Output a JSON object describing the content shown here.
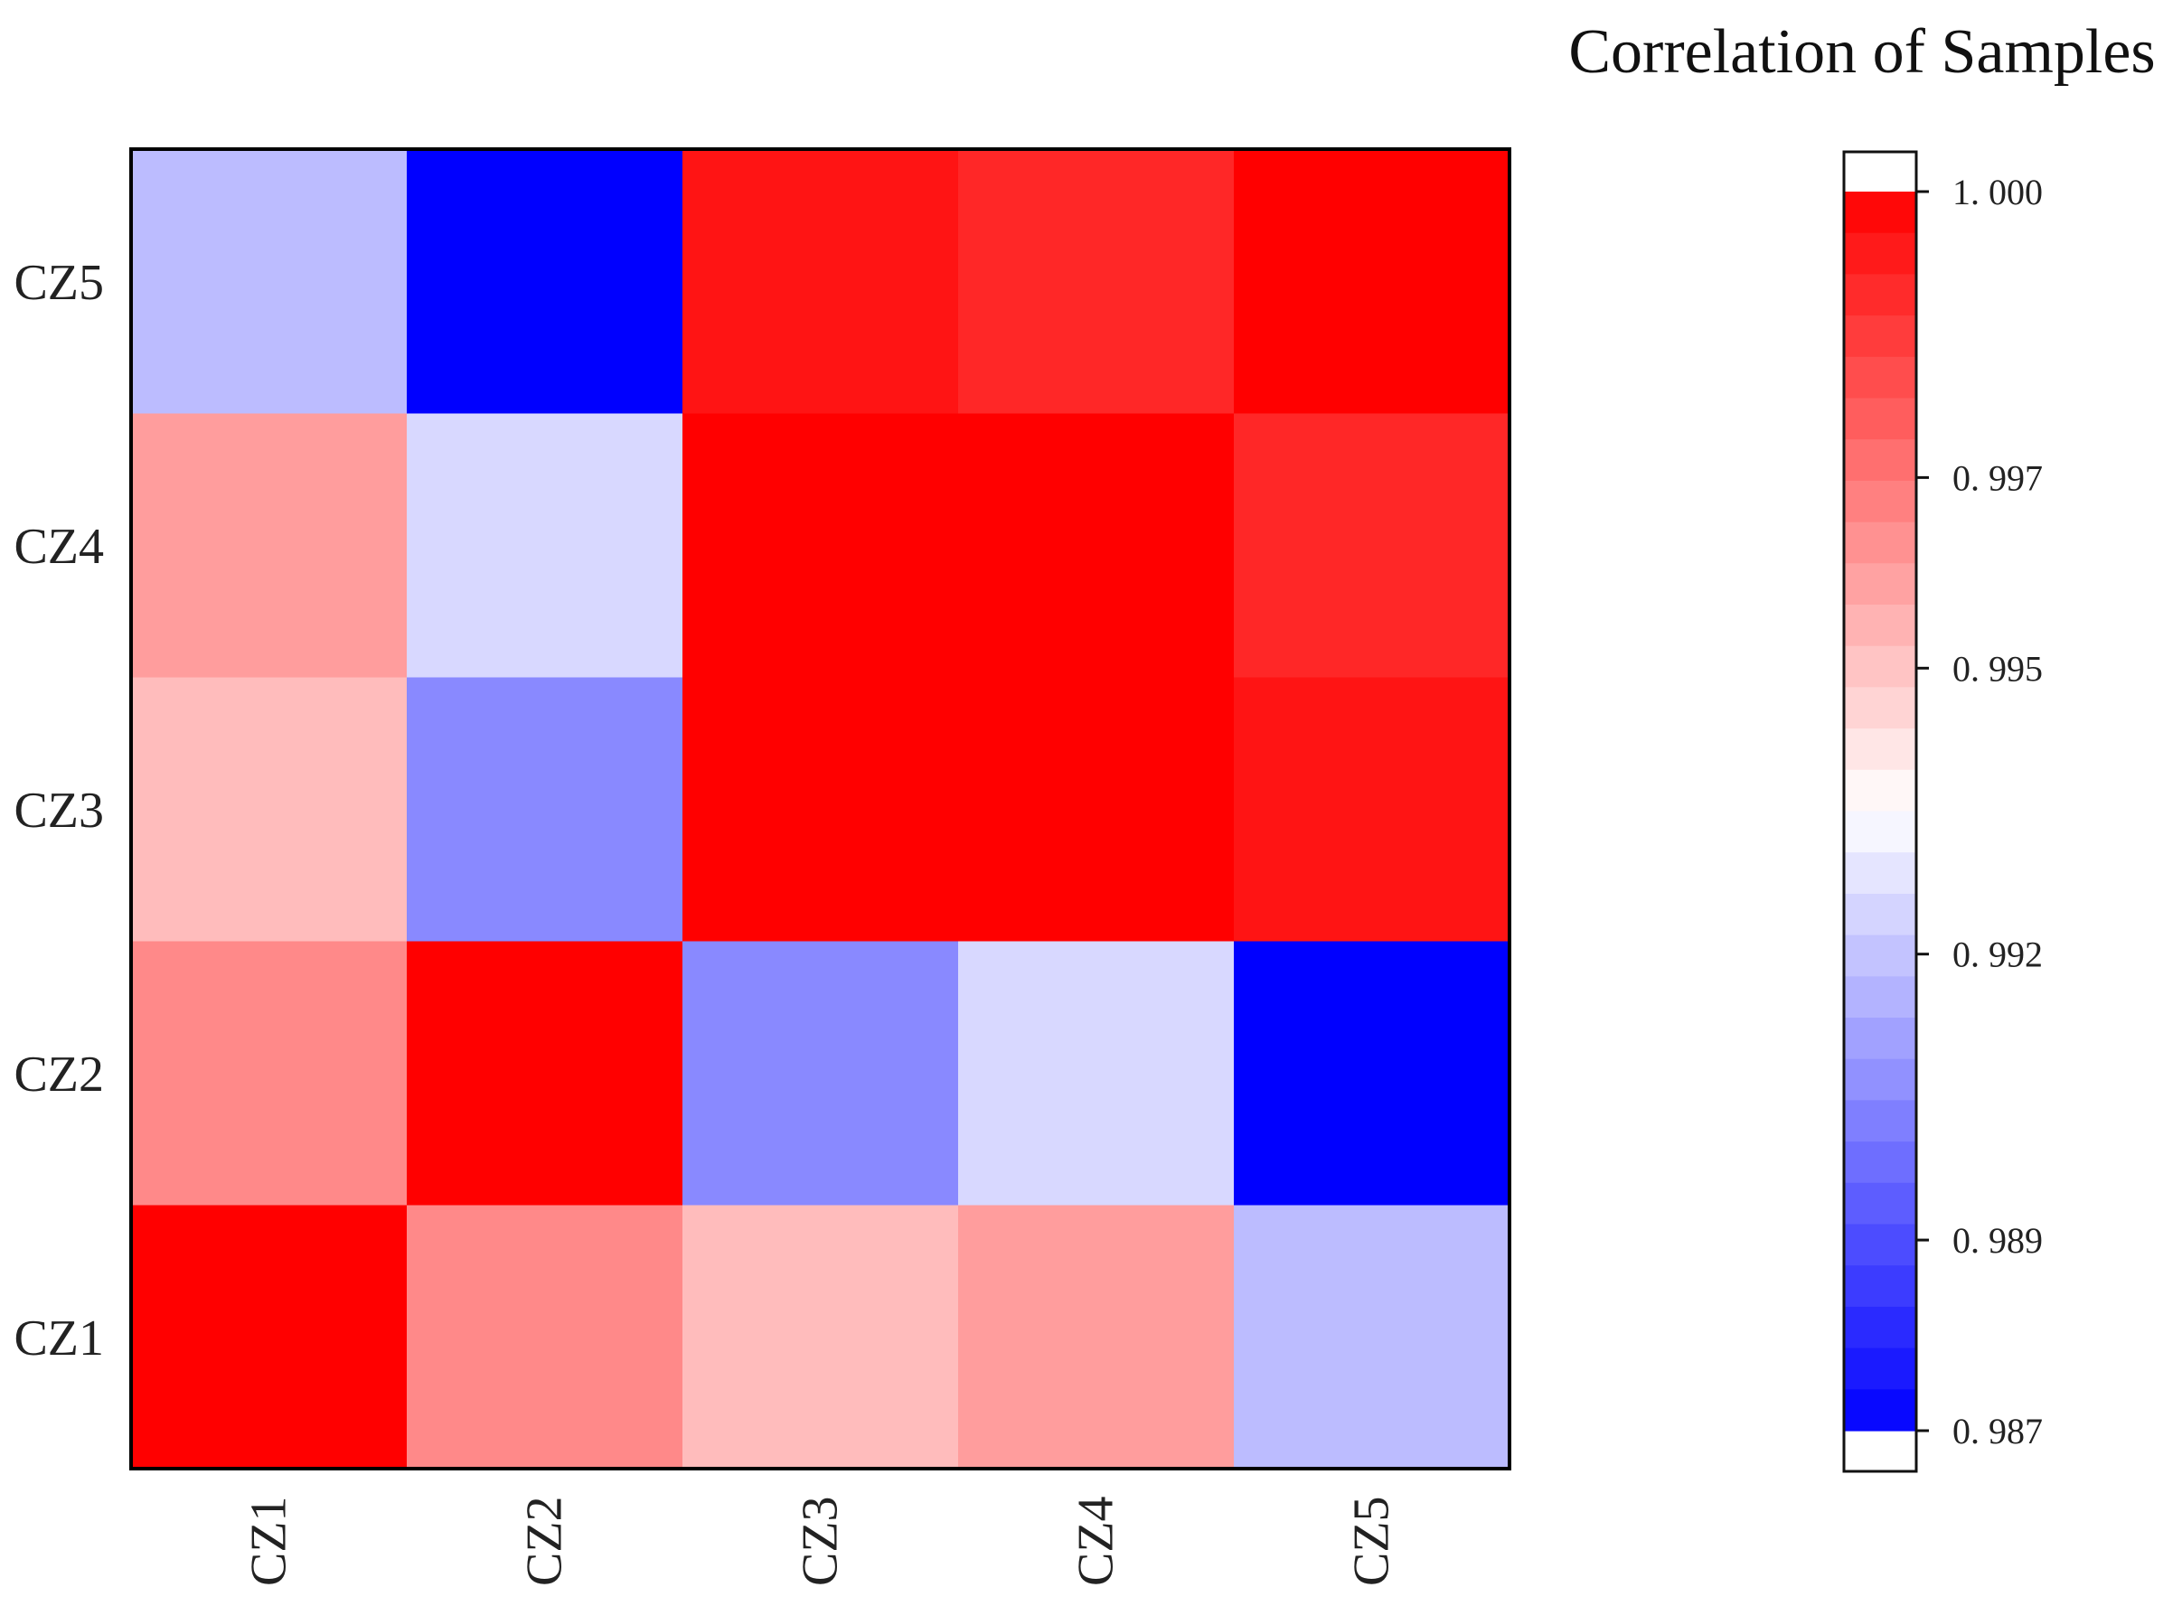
{
  "chart_data": {
    "type": "heatmap",
    "title": "Correlation of Samples",
    "x_categories": [
      "CZ1",
      "CZ2",
      "CZ3",
      "CZ4",
      "CZ5"
    ],
    "y_categories": [
      "CZ1",
      "CZ2",
      "CZ3",
      "CZ4",
      "CZ5"
    ],
    "values": [
      [
        1.0,
        0.9965,
        0.9952,
        0.996,
        0.9918
      ],
      [
        0.9965,
        1.0,
        0.9905,
        0.9925,
        0.987
      ],
      [
        0.9952,
        0.9905,
        1.0,
        1.0,
        0.9995
      ],
      [
        0.996,
        0.9925,
        1.0,
        1.0,
        0.999
      ],
      [
        0.9918,
        0.987,
        0.9995,
        0.999,
        1.0
      ]
    ],
    "colorbar": {
      "min": 0.987,
      "max": 1.0,
      "ticks": [
        "1. 000",
        "0. 997",
        "0. 995",
        "0. 992",
        "0. 989",
        "0. 987"
      ],
      "tick_values": [
        1.0,
        0.997,
        0.995,
        0.992,
        0.989,
        0.987
      ],
      "colors": {
        "low": "#0000ff",
        "mid": "#ffffff",
        "high": "#ff0000"
      },
      "mid_value": 0.9935
    }
  }
}
